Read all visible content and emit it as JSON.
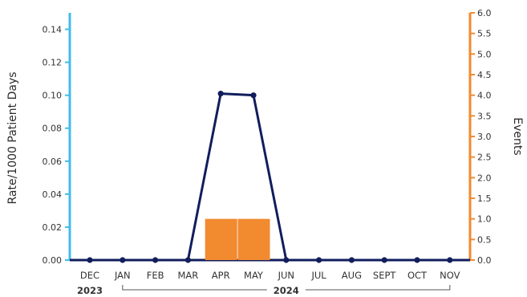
{
  "chart_data": {
    "type": "bar",
    "x": {
      "categories": [
        "DEC",
        "JAN",
        "FEB",
        "MAR",
        "APR",
        "MAY",
        "JUN",
        "JUL",
        "AUG",
        "SEPT",
        "OCT",
        "NOV"
      ],
      "year_groups": [
        {
          "label": "2023",
          "categories": [
            "DEC"
          ]
        },
        {
          "label": "2024",
          "categories": [
            "JAN",
            "FEB",
            "MAR",
            "APR",
            "MAY",
            "JUN",
            "JUL",
            "AUG",
            "SEPT",
            "OCT",
            "NOV"
          ]
        }
      ]
    },
    "left_axis": {
      "label": "Rate/1000 Patient Days",
      "ylim": [
        0,
        0.15
      ],
      "ticks": [
        "0.00",
        "0.02",
        "0.04",
        "0.06",
        "0.08",
        "0.10",
        "0.12",
        "0.14"
      ],
      "color": "#41bdea"
    },
    "right_axis": {
      "label": "Events",
      "ylim": [
        0,
        6.0
      ],
      "ticks": [
        "0.0",
        "0.5",
        "1.0",
        "1.5",
        "2.0",
        "2.5",
        "3.0",
        "3.5",
        "4.0",
        "4.5",
        "5.0",
        "5.5",
        "6.0"
      ],
      "color": "#f28a30"
    },
    "series": [
      {
        "kind": "bar",
        "axis": "right",
        "color": "#f28a30",
        "values": [
          0,
          0,
          0,
          0,
          1,
          1,
          0,
          0,
          0,
          0,
          0,
          0
        ]
      },
      {
        "kind": "line",
        "axis": "left",
        "color": "#111d5c",
        "values": [
          0,
          0,
          0,
          0,
          0.101,
          0.1,
          0,
          0,
          0,
          0,
          0,
          0
        ]
      }
    ],
    "grid": false,
    "legend": "none"
  }
}
